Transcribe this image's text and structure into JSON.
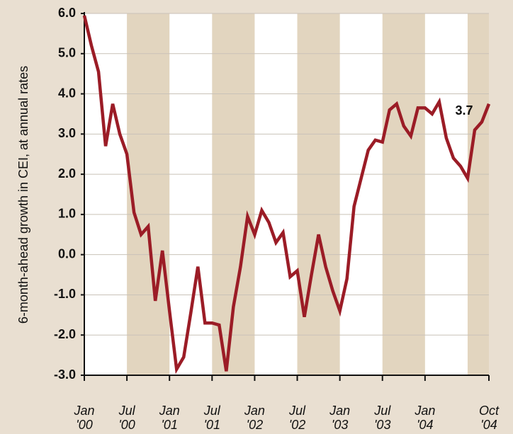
{
  "chart_data": {
    "type": "line",
    "ylabel": "6-month-ahead growth in CEI, at annual rates",
    "categories": [
      "Jan '00",
      null,
      null,
      null,
      null,
      null,
      "Jul '00",
      null,
      null,
      null,
      null,
      null,
      "Jan '01",
      null,
      null,
      null,
      null,
      null,
      "Jul '01",
      null,
      null,
      null,
      null,
      null,
      "Jan '02",
      null,
      null,
      null,
      null,
      null,
      "Jul '02",
      null,
      null,
      null,
      null,
      null,
      "Jan '03",
      null,
      null,
      null,
      null,
      null,
      "Jul '03",
      null,
      null,
      null,
      null,
      null,
      "Jan '04",
      null,
      null,
      null,
      null,
      null,
      null,
      null,
      null,
      "Oct '04"
    ],
    "series": [
      {
        "color": "#9b1c26",
        "values": [
          5.95,
          5.2,
          4.55,
          2.7,
          3.75,
          3.0,
          2.5,
          1.05,
          0.5,
          0.7,
          -1.15,
          0.1,
          -1.4,
          -2.85,
          -2.55,
          -1.45,
          -0.3,
          -1.7,
          -1.7,
          -1.75,
          -2.9,
          -1.3,
          -0.3,
          0.95,
          0.5,
          1.1,
          0.8,
          0.3,
          0.55,
          -0.55,
          -0.4,
          -1.55,
          -0.5,
          0.5,
          -0.3,
          -0.9,
          -1.4,
          -0.6,
          1.2,
          1.9,
          2.6,
          2.85,
          2.8,
          3.6,
          3.75,
          3.2,
          2.95,
          3.65,
          3.65,
          3.5,
          3.8,
          2.9,
          2.4,
          2.2,
          1.9,
          3.1,
          3.3,
          3.75
        ]
      }
    ],
    "annotation": "3.7",
    "ylim": [
      -3,
      6
    ],
    "yticks": [
      {
        "value": -3,
        "label": "-3.0"
      },
      {
        "value": -2,
        "label": "-2.0"
      },
      {
        "value": -1,
        "label": "-1.0"
      },
      {
        "value": 0,
        "label": "0.0"
      },
      {
        "value": 1,
        "label": "1.0"
      },
      {
        "value": 2,
        "label": "2.0"
      },
      {
        "value": 3,
        "label": "3.0"
      },
      {
        "value": 4,
        "label": "4.0"
      },
      {
        "value": 5,
        "label": "5.0"
      },
      {
        "value": 6,
        "label": "6.0"
      }
    ],
    "grid": true
  }
}
